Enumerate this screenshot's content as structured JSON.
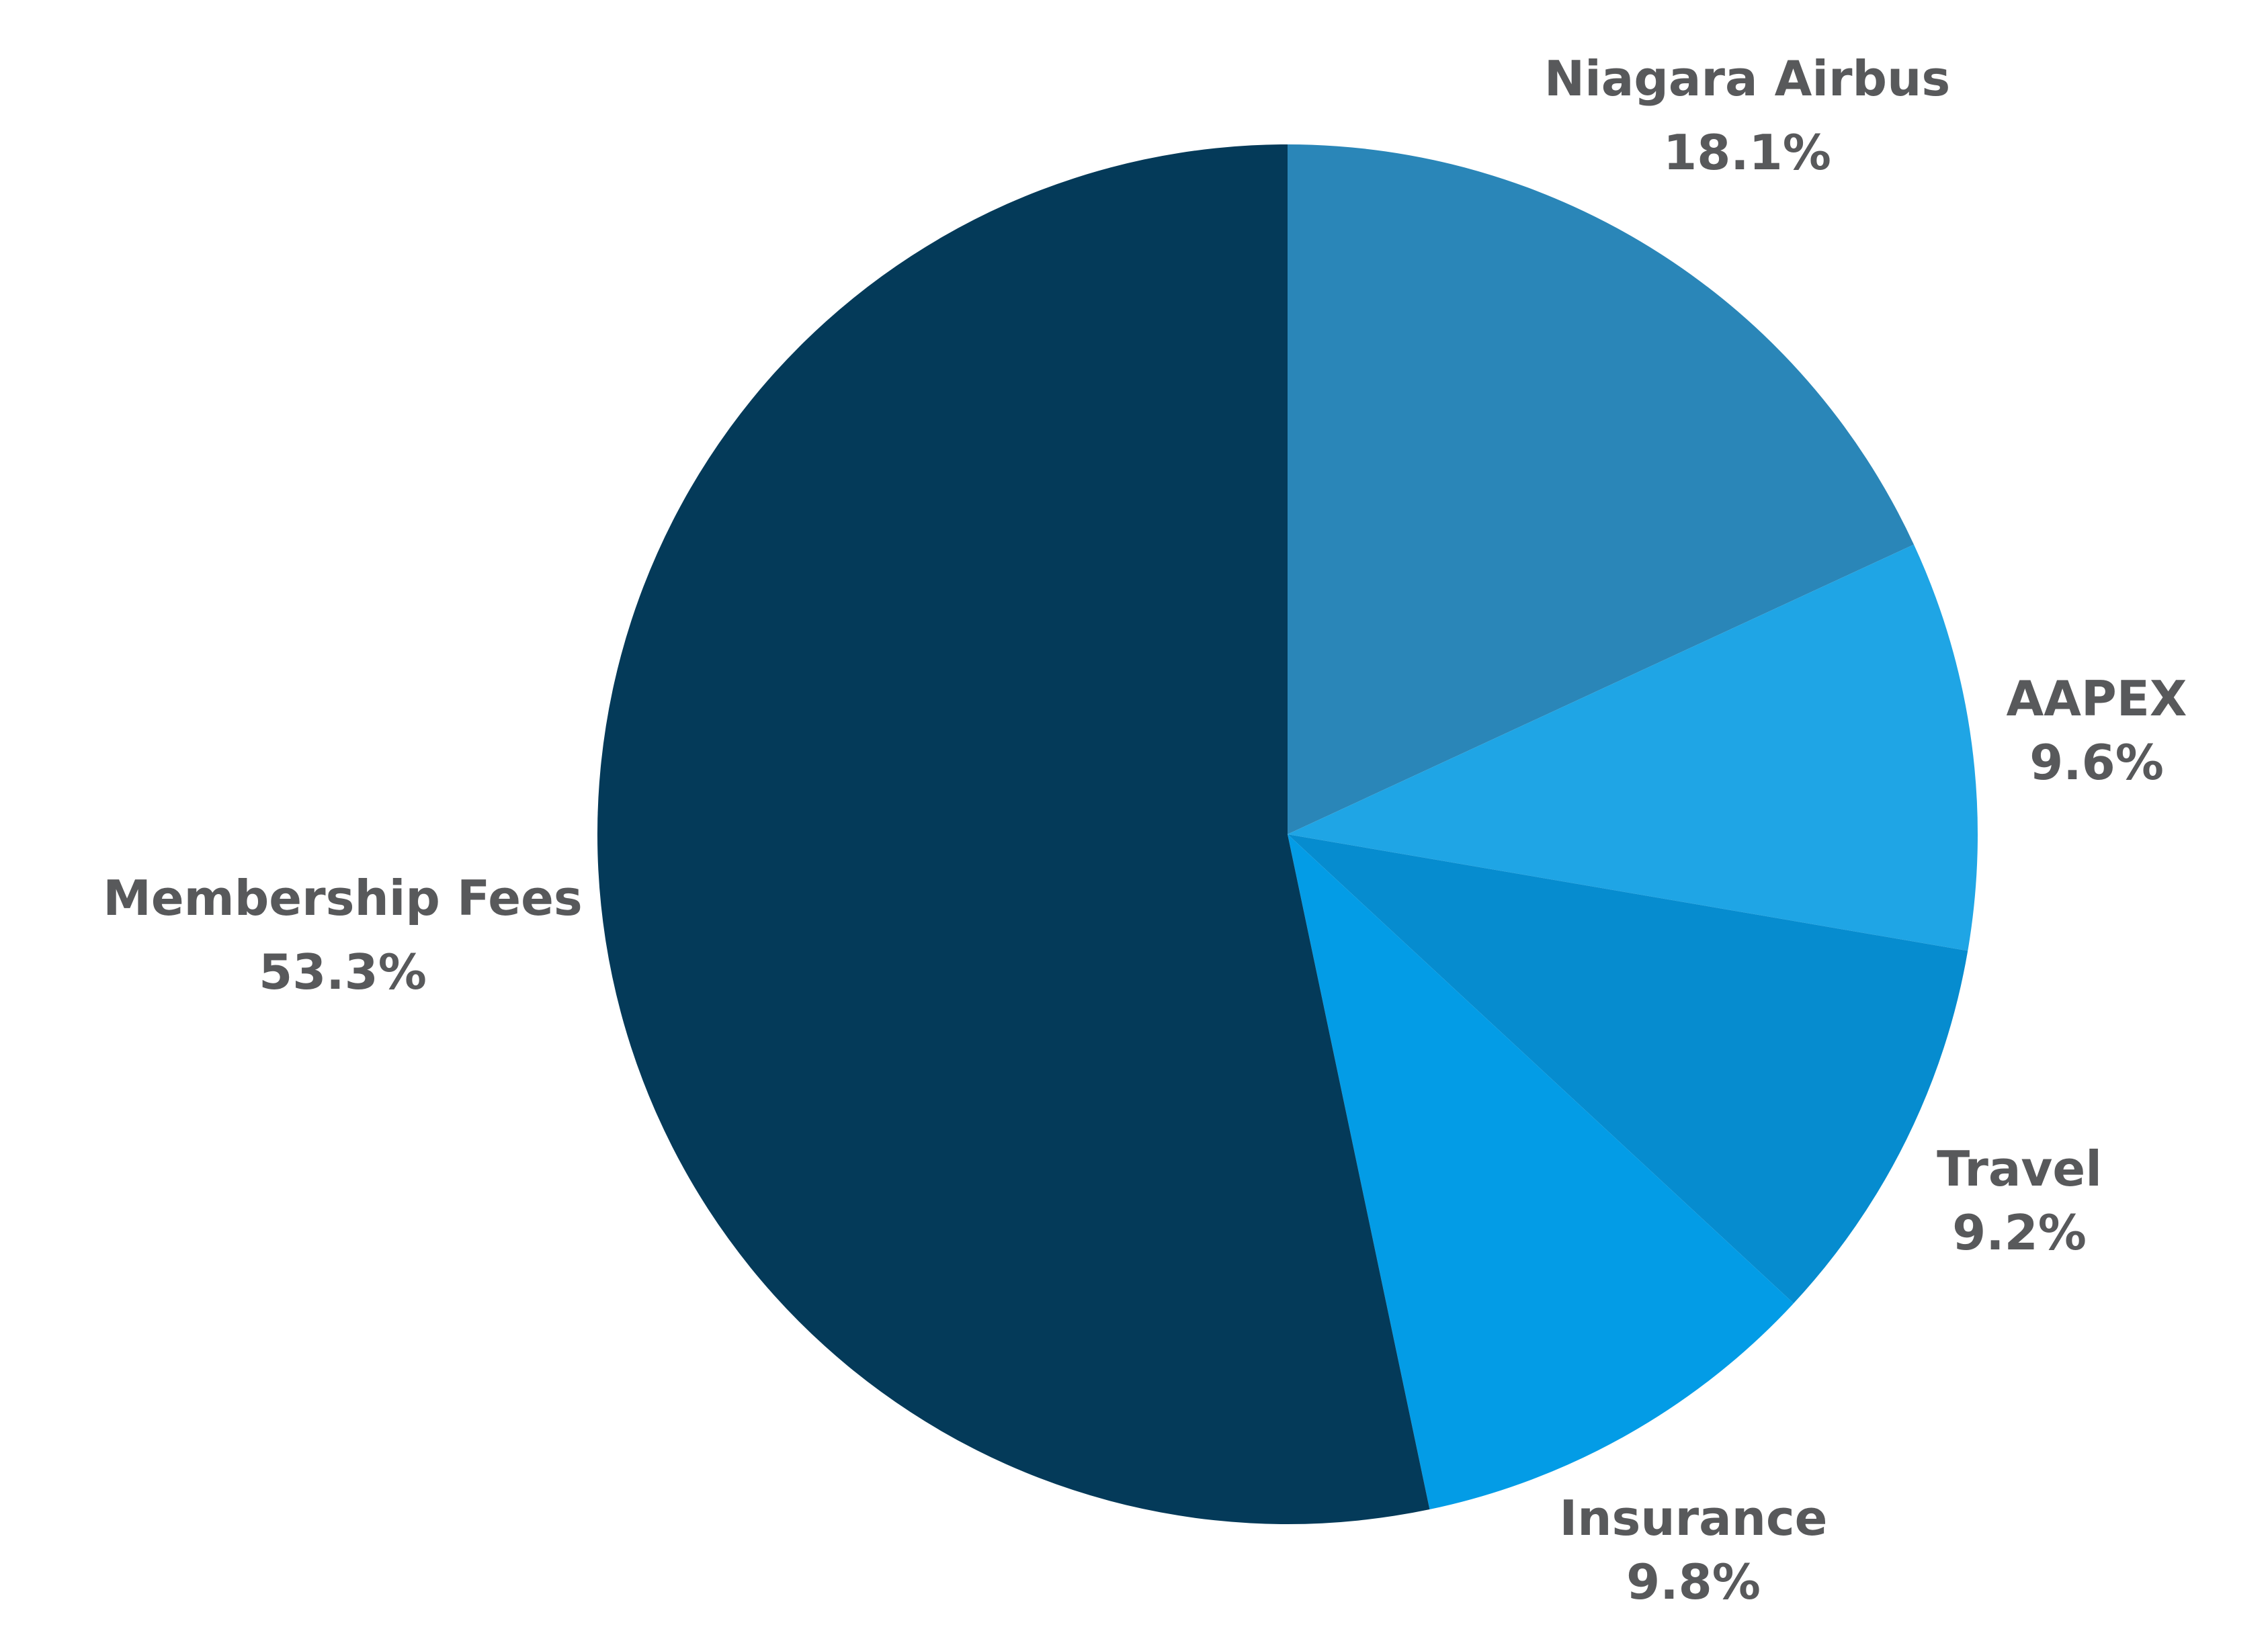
{
  "chart_data": {
    "type": "pie",
    "title": "",
    "start_angle_deg": 0,
    "direction": "clockwise",
    "legend": "none",
    "slices": [
      {
        "label": "Niagara Airbus",
        "value": 18.1,
        "value_label": "18.1%",
        "color": "#2a86b8"
      },
      {
        "label": "AAPEX",
        "value": 9.6,
        "value_label": "9.6%",
        "color": "#1fa5e5"
      },
      {
        "label": "Travel",
        "value": 9.2,
        "value_label": "9.2%",
        "color": "#068ccf"
      },
      {
        "label": "Insurance",
        "value": 9.8,
        "value_label": "9.8%",
        "color": "#039ce6"
      },
      {
        "label": "Membership Fees",
        "value": 53.3,
        "value_label": "53.3%",
        "color": "#043a59"
      }
    ]
  }
}
